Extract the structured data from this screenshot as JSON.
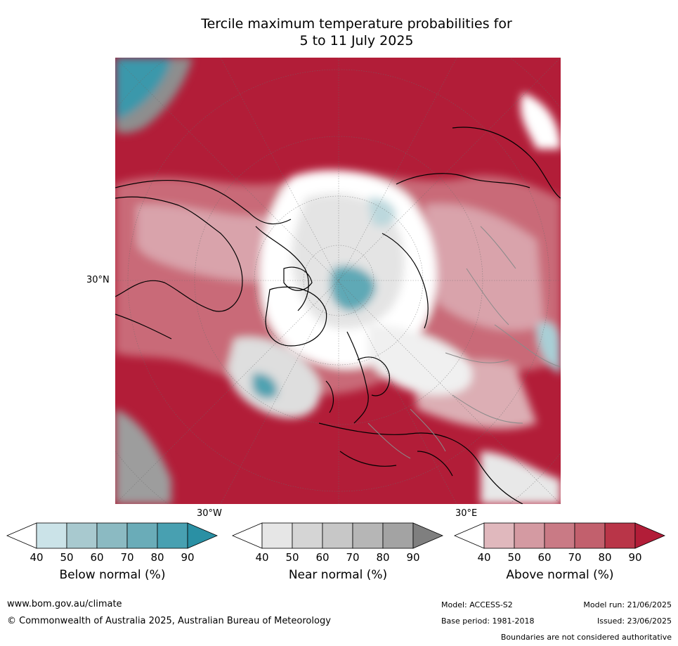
{
  "title": {
    "line1": "Tercile maximum temperature probabilities for",
    "line2": "5 to 11 July 2025"
  },
  "map": {
    "lat_label": "30°N",
    "lon_labels": [
      "30°W",
      "30°E"
    ],
    "colors": {
      "above": "#b21d38",
      "above_light": "#e0b2b8",
      "near": "#c8c8c8",
      "below": "#2a90a4",
      "land_outline": "#000000",
      "borders": "#888888"
    }
  },
  "colorbars": {
    "ticks": [
      "40",
      "50",
      "60",
      "70",
      "80",
      "90"
    ],
    "below": {
      "label": "Below normal (%)",
      "colors": [
        "#ffffff",
        "#cbe3e8",
        "#a8c9cf",
        "#8bbac2",
        "#6aacb8",
        "#48a0b1",
        "#2a90a4"
      ]
    },
    "near": {
      "label": "Near normal (%)",
      "colors": [
        "#ffffff",
        "#e6e6e6",
        "#d5d5d5",
        "#c7c7c7",
        "#b6b6b6",
        "#a3a3a3",
        "#7f7f7f"
      ]
    },
    "above": {
      "label": "Above normal (%)",
      "colors": [
        "#ffffff",
        "#e0b8bd",
        "#d49aa2",
        "#c97a85",
        "#c2606d",
        "#b93548",
        "#b21d38"
      ]
    }
  },
  "footer": {
    "website": "www.bom.gov.au/climate",
    "copyright": "© Commonwealth of Australia 2025, Australian Bureau of Meteorology",
    "model": "Model: ACCESS-S2",
    "model_run": "Model run: 21/06/2025",
    "base_period": "Base period: 1981-2018",
    "issued": "Issued: 23/06/2025",
    "disclaimer": "Boundaries are not considered authoritative"
  }
}
